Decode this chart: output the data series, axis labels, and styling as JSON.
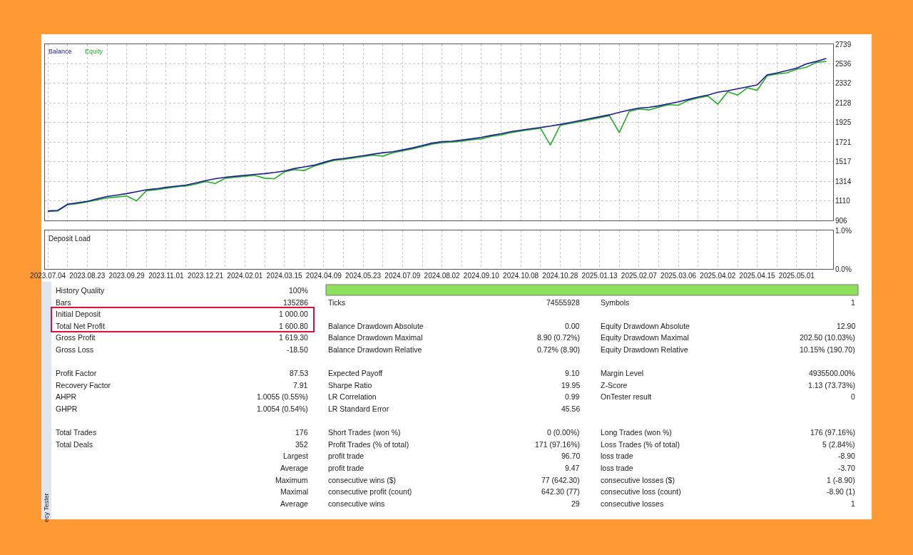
{
  "chart_data": [
    {
      "type": "line",
      "categories": [
        "2023.07.04",
        null,
        null,
        null,
        "2023.08.23",
        null,
        null,
        null,
        "2023.09.29",
        null,
        null,
        null,
        "2023.11.01",
        null,
        null,
        null,
        "2023.12.21",
        null,
        null,
        null,
        "2024.02.01",
        null,
        null,
        null,
        "2024.03.15",
        null,
        null,
        null,
        "2024.04.09",
        null,
        null,
        null,
        "2024.05.23",
        null,
        null,
        null,
        "2024.07.09",
        null,
        null,
        null,
        "2024.08.02",
        null,
        null,
        null,
        "2024.09.10",
        null,
        null,
        null,
        "2024.10.08",
        null,
        null,
        null,
        "2024.10.28",
        null,
        null,
        null,
        "2025.01.13",
        null,
        null,
        null,
        "2025.02.07",
        null,
        null,
        null,
        "2025.03.06",
        null,
        null,
        null,
        "2025.04.02",
        null,
        null,
        null,
        "2025.04.15",
        null,
        null,
        null,
        "2025.05.01",
        null,
        null,
        null
      ],
      "series": [
        {
          "name": "Balance",
          "color": "#1a1a9c",
          "values": [
            1005,
            1010,
            1075,
            1090,
            1105,
            1130,
            1155,
            1170,
            1185,
            1205,
            1225,
            1235,
            1250,
            1262,
            1273,
            1295,
            1320,
            1340,
            1355,
            1365,
            1375,
            1385,
            1393,
            1405,
            1420,
            1445,
            1462,
            1480,
            1510,
            1538,
            1550,
            1565,
            1580,
            1595,
            1610,
            1620,
            1640,
            1660,
            1685,
            1710,
            1725,
            1730,
            1742,
            1755,
            1770,
            1790,
            1808,
            1830,
            1845,
            1860,
            1872,
            1888,
            1905,
            1925,
            1945,
            1965,
            1985,
            2005,
            2030,
            2055,
            2075,
            2082,
            2098,
            2120,
            2140,
            2165,
            2190,
            2210,
            2240,
            2255,
            2275,
            2295,
            2315,
            2420,
            2440,
            2465,
            2490,
            2535,
            2560,
            2590
          ]
        },
        {
          "name": "Equity",
          "color": "#22b022",
          "values": [
            1000,
            1005,
            1070,
            1080,
            1100,
            1120,
            1140,
            1150,
            1160,
            1110,
            1215,
            1225,
            1240,
            1255,
            1265,
            1285,
            1310,
            1290,
            1345,
            1355,
            1365,
            1375,
            1345,
            1340,
            1410,
            1435,
            1425,
            1470,
            1500,
            1530,
            1540,
            1555,
            1570,
            1585,
            1575,
            1610,
            1630,
            1650,
            1675,
            1700,
            1715,
            1720,
            1730,
            1745,
            1755,
            1780,
            1795,
            1820,
            1835,
            1850,
            1865,
            1690,
            1895,
            1915,
            1935,
            1955,
            1975,
            1995,
            1820,
            2040,
            2065,
            2055,
            2085,
            2110,
            2105,
            2155,
            2180,
            2200,
            2115,
            2245,
            2210,
            2285,
            2260,
            2410,
            2430,
            2440,
            2480,
            2500,
            2550,
            2560
          ]
        }
      ],
      "ylim": [
        906,
        2739
      ],
      "yticks": [
        906,
        1110,
        1314,
        1517,
        1721,
        1925,
        2128,
        2332,
        2536,
        2739
      ],
      "grid": true,
      "legend": "top left",
      "tick_labels": "y"
    },
    {
      "type": "line",
      "title": "Deposit Load",
      "categories": [
        "2023.07.04",
        null,
        null,
        null,
        "2023.08.23",
        null,
        null,
        null,
        "2023.09.29",
        null,
        null,
        null,
        "2023.11.01",
        null,
        null,
        null,
        "2023.12.21",
        null,
        null,
        null,
        "2024.02.01",
        null,
        null,
        null,
        "2024.03.15",
        null,
        null,
        null,
        "2024.04.09",
        null,
        null,
        null,
        "2024.05.23",
        null,
        null,
        null,
        "2024.07.09",
        null,
        null,
        null,
        "2024.08.02",
        null,
        null,
        null,
        "2024.09.10",
        null,
        null,
        null,
        "2024.10.08",
        null,
        null,
        null,
        "2024.10.28",
        null,
        null,
        null,
        "2025.01.13",
        null,
        null,
        null,
        "2025.02.07",
        null,
        null,
        null,
        "2025.03.06",
        null,
        null,
        null,
        "2025.04.02",
        null,
        null,
        null,
        "2025.04.15",
        null,
        null,
        null,
        "2025.05.01",
        null,
        null,
        null
      ],
      "ylim": [
        0,
        1
      ],
      "yticks": [
        {
          "value": 0,
          "label": "0.0%"
        },
        {
          "value": 1,
          "label": "1.0%"
        }
      ],
      "grid": true
    },
    {
      "type": "other",
      "title": "ecy Tester",
      "annotations": [
        "History Quality",
        "100%",
        null,
        null,
        null,
        null,
        "Bars",
        "135286",
        "Ticks",
        "74555928",
        "Symbols",
        "1",
        "Initial Deposit",
        "1 000.00",
        null,
        null,
        null,
        null,
        "Total Net Profit",
        "1 600.80",
        "Balance Drawdown Absolute",
        "0.00",
        "Equity Drawdown Absolute",
        "12.90",
        "Gross Profit",
        "1 619.30",
        "Balance Drawdown Maximal",
        "8.90 (0.72%)",
        "Equity Drawdown Maximal",
        "202.50 (10.03%)",
        "Gross Loss",
        "-18.50",
        "Balance Drawdown Relative",
        "0.72% (8.90)",
        "Equity Drawdown Relative",
        "10.15% (190.70)",
        null,
        null,
        null,
        null,
        null,
        null,
        "Profit Factor",
        "87.53",
        "Expected Payoff",
        "9.10",
        "Margin Level",
        "4935500.00%",
        "Recovery Factor",
        "7.91",
        "Sharpe Ratio",
        "19.95",
        "Z-Score",
        "1.13 (73.73%)",
        "AHPR",
        "1.0055 (0.55%)",
        "LR Correlation",
        "0.99",
        "OnTester result",
        "0",
        "GHPR",
        "1.0054 (0.54%)",
        "LR Standard Error",
        "45.56",
        null,
        null,
        null,
        null,
        null,
        null,
        null,
        null,
        "Total Trades",
        "176",
        "Short Trades (won %)",
        "0 (0.00%)",
        "Long Trades (won %)",
        "176 (97.16%)",
        "Total Deals",
        "352",
        "Profit Trades (% of total)",
        "171 (97.16%)",
        "Loss Trades (% of total)",
        "5 (2.84%)",
        null,
        "Largest",
        "profit trade",
        "96.70",
        "loss trade",
        "-8.90",
        null,
        "Average",
        "profit trade",
        "9.47",
        "loss trade",
        "-3.70",
        null,
        "Maximum",
        "consecutive wins ($)",
        "77 (642.30)",
        "consecutive losses ($)",
        "1 (-8.90)",
        null,
        "Maximal",
        "consecutive profit (count)",
        "642.30 (77)",
        "consecutive loss (count)",
        "-8.90 (1)",
        null,
        "Average",
        "consecutive wins",
        "29",
        "consecutive losses",
        "1"
      ]
    }
  ]
}
